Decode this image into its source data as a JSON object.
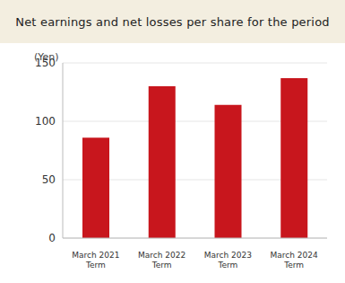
{
  "chart_data": {
    "type": "bar",
    "title": "Net earnings and net losses per share for the period",
    "y_label": "(Yen)",
    "categories": [
      "March 2021 Term",
      "March 2022 Term",
      "March 2023 Term",
      "March 2024 Term"
    ],
    "values": [
      86,
      130,
      114,
      137
    ],
    "color": "#c8161d",
    "ylim": [
      0,
      150
    ],
    "yticks": [
      0,
      50,
      100,
      150
    ],
    "grid": true
  }
}
